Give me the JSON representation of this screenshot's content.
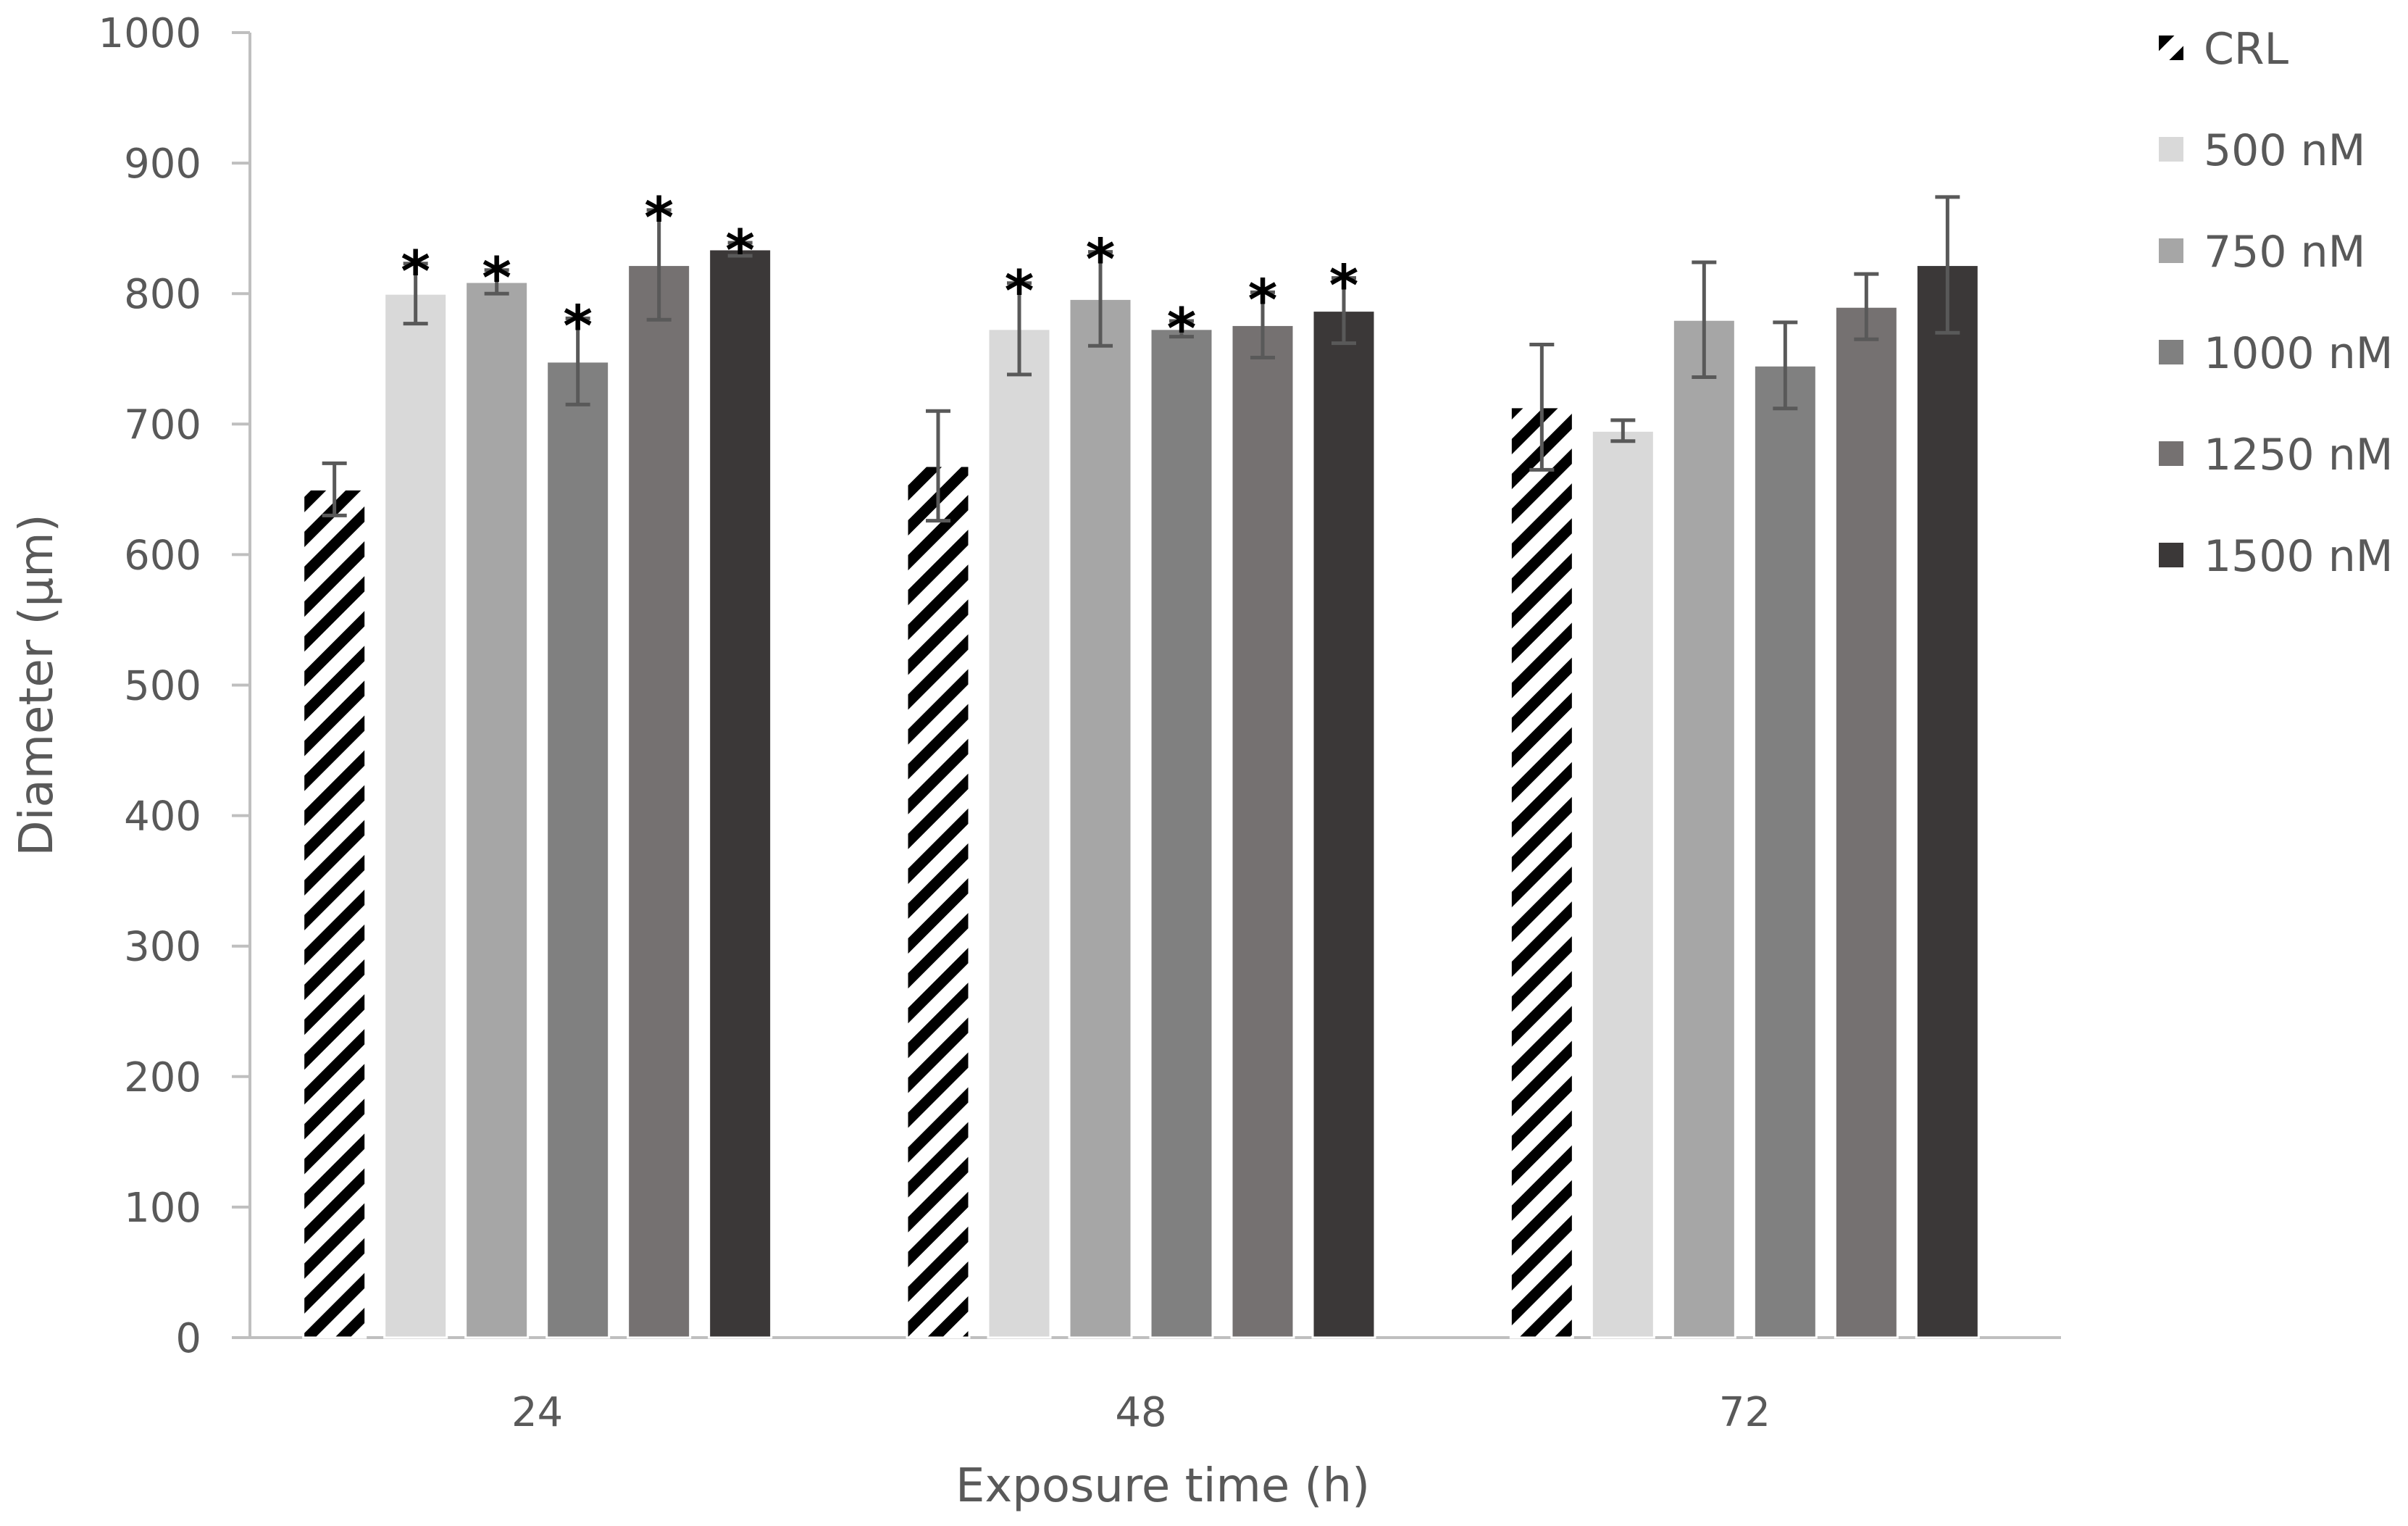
{
  "chart_data": {
    "type": "bar",
    "title": "",
    "xlabel": "Exposure time (h)",
    "ylabel": "Diameter (µm)",
    "ylim": [
      0,
      1000
    ],
    "yticks": [
      0,
      100,
      200,
      300,
      400,
      500,
      600,
      700,
      800,
      900,
      1000
    ],
    "categories": [
      "24",
      "48",
      "72"
    ],
    "legend_position": "right",
    "significance_marker": "*",
    "series": [
      {
        "name": "CRL",
        "color": "#000000",
        "pattern": "hatch",
        "values": [
          650,
          668,
          713
        ],
        "errors": [
          20,
          42,
          48
        ],
        "significant": [
          false,
          false,
          false
        ]
      },
      {
        "name": "500 nM",
        "color": "#d9d9d9",
        "values": [
          800,
          773,
          695
        ],
        "errors": [
          23,
          35,
          8
        ],
        "significant": [
          true,
          true,
          false
        ]
      },
      {
        "name": "750 nM",
        "color": "#a6a6a6",
        "values": [
          809,
          796,
          780
        ],
        "errors": [
          9,
          36,
          44
        ],
        "significant": [
          true,
          true,
          false
        ]
      },
      {
        "name": "1000 nM",
        "color": "#808080",
        "values": [
          748,
          773,
          745
        ],
        "errors": [
          33,
          6,
          33
        ],
        "significant": [
          true,
          true,
          false
        ]
      },
      {
        "name": "1250 nM",
        "color": "#757171",
        "values": [
          822,
          776,
          790
        ],
        "errors": [
          42,
          25,
          25
        ],
        "significant": [
          true,
          true,
          false
        ]
      },
      {
        "name": "1500 nM",
        "color": "#3b3838",
        "values": [
          834,
          787,
          822
        ],
        "errors": [
          5,
          25,
          52
        ],
        "significant": [
          true,
          true,
          false
        ]
      }
    ]
  }
}
